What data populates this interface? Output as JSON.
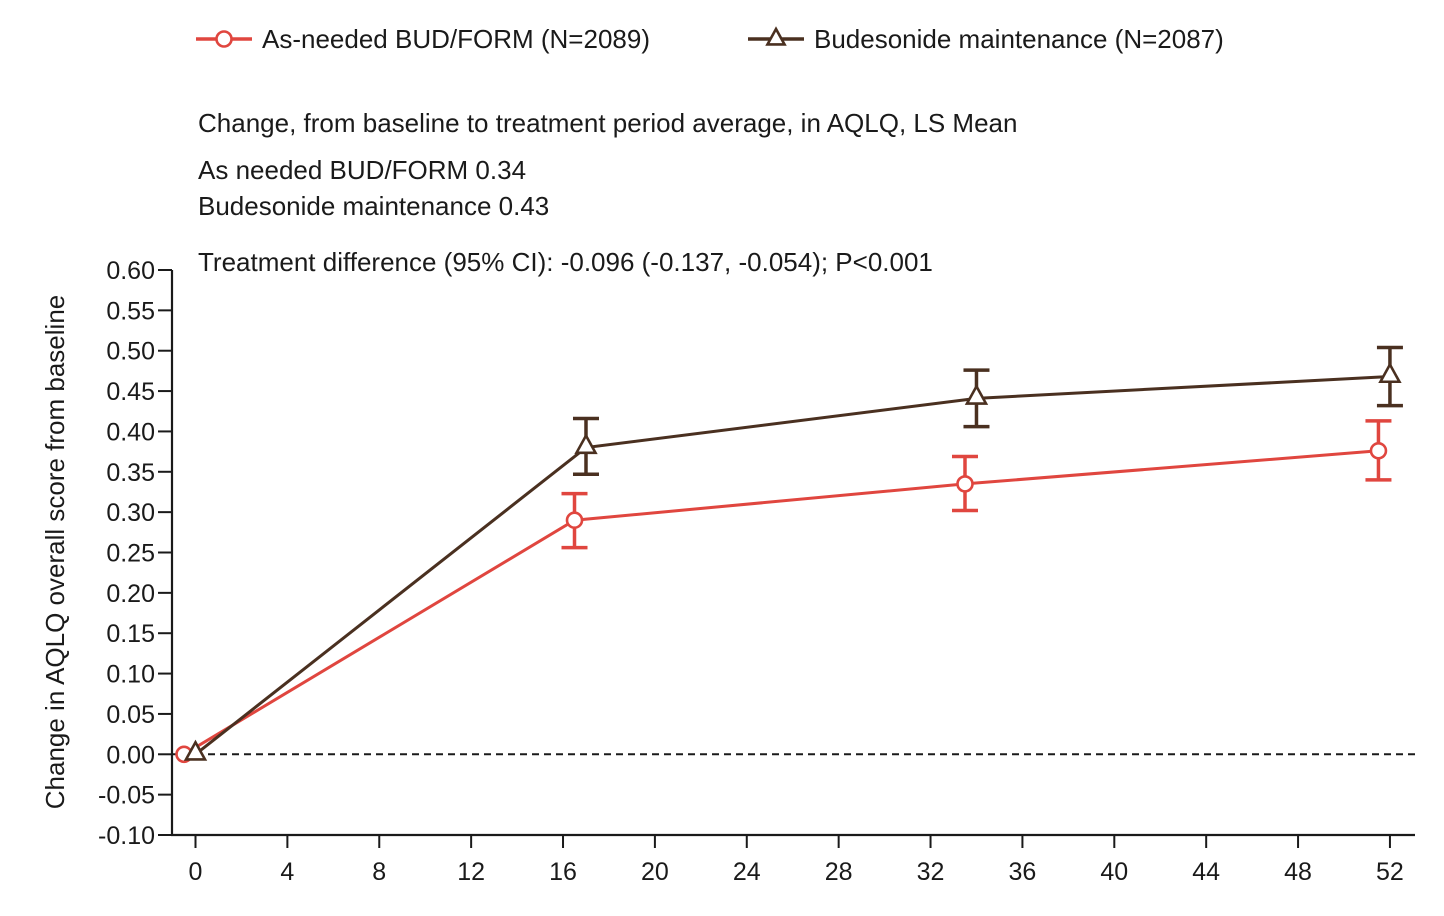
{
  "chart_data": {
    "type": "line",
    "xlabel": "",
    "ylabel": "Change in AQLQ overall score from baseline",
    "xlim": [
      -1,
      53
    ],
    "ylim": [
      -0.1,
      0.6
    ],
    "xticks": [
      0,
      4,
      8,
      12,
      16,
      20,
      24,
      28,
      32,
      36,
      40,
      44,
      48,
      52
    ],
    "xtick_labels": [
      "0",
      "4",
      "8",
      "12",
      "16",
      "20",
      "24",
      "28",
      "32",
      "36",
      "40",
      "44",
      "48",
      "52"
    ],
    "yticks": [
      -0.1,
      -0.05,
      0.0,
      0.05,
      0.1,
      0.15,
      0.2,
      0.25,
      0.3,
      0.35,
      0.4,
      0.45,
      0.5,
      0.55,
      0.6
    ],
    "ytick_labels": [
      "-0.10",
      "-0.05",
      "0.00",
      "0.05",
      "0.10",
      "0.15",
      "0.20",
      "0.25",
      "0.30",
      "0.35",
      "0.40",
      "0.45",
      "0.50",
      "0.55",
      "0.60"
    ],
    "reference_line": {
      "y": 0.0,
      "style": "dashed"
    },
    "grid": false,
    "legend_position": "top",
    "series": [
      {
        "name": "As-needed BUD/FORM (N=2089)",
        "color": "#e0463f",
        "marker": "circle",
        "x": [
          -0.5,
          16.5,
          33.5,
          51.5
        ],
        "y": [
          0.0,
          0.29,
          0.335,
          0.376
        ],
        "ci_low": [
          0.0,
          0.256,
          0.302,
          0.34
        ],
        "ci_high": [
          0.0,
          0.323,
          0.369,
          0.413
        ]
      },
      {
        "name": "Budesonide maintenance (N=2087)",
        "color": "#4a3020",
        "marker": "triangle",
        "x": [
          0,
          17,
          34,
          52
        ],
        "y": [
          0.0,
          0.38,
          0.441,
          0.468
        ],
        "ci_low": [
          0.0,
          0.347,
          0.406,
          0.432
        ],
        "ci_high": [
          0.0,
          0.416,
          0.476,
          0.504
        ]
      }
    ],
    "annotations": [
      "Change, from baseline to treatment period average, in AQLQ, LS Mean",
      "As needed BUD/FORM 0.34",
      "Budesonide maintenance 0.43",
      "Treatment difference (95% CI): -0.096 (-0.137, -0.054); P<0.001"
    ]
  }
}
